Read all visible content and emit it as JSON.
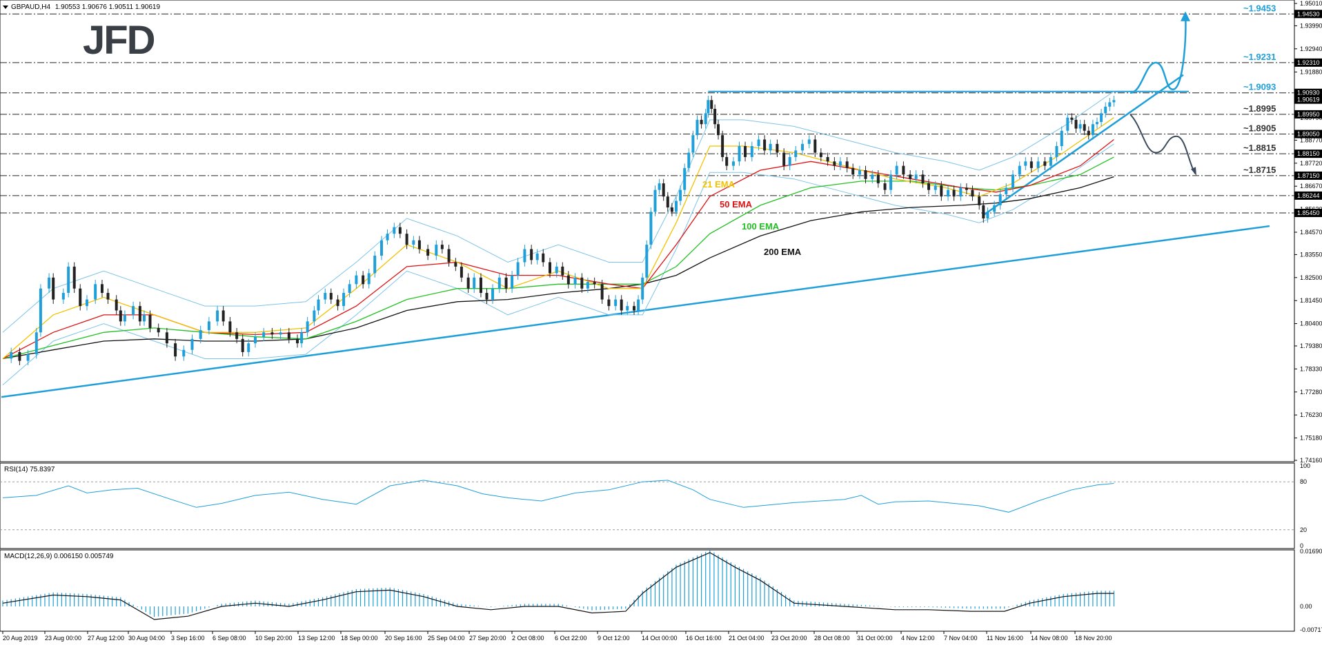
{
  "chart_data": {
    "type": "candlestick",
    "symbol_header": "GBPAUD,H4",
    "ohlc_header": "1.90553 1.90676 1.90511 1.90619",
    "logo": "JFD",
    "price_axis": {
      "min": 1.7416,
      "max": 1.9501,
      "ticks": [
        "1.95010",
        "1.93990",
        "1.92940",
        "1.91880",
        "1.90930",
        "1.90619",
        "1.89950",
        "1.89790",
        "1.88770",
        "1.87720",
        "1.86670",
        "1.85620",
        "1.84570",
        "1.83550",
        "1.82500",
        "1.81450",
        "1.80400",
        "1.79380",
        "1.78330",
        "1.77280",
        "1.76230",
        "1.75180",
        "1.74160"
      ],
      "ticks_values": [
        1.9501,
        1.9399,
        1.9294,
        1.9188,
        1.9093,
        1.90619,
        1.8995,
        1.8979,
        1.8877,
        1.8772,
        1.8667,
        1.8562,
        1.8457,
        1.8355,
        1.825,
        1.8145,
        1.804,
        1.7938,
        1.7833,
        1.7728,
        1.7623,
        1.7518,
        1.7416
      ]
    },
    "time_axis": [
      "20 Aug 2019",
      "23 Aug 00:00",
      "27 Aug 12:00",
      "30 Aug 04:00",
      "3 Sep 16:00",
      "6 Sep 08:00",
      "10 Sep 20:00",
      "13 Sep 12:00",
      "18 Sep 00:00",
      "20 Sep 16:00",
      "25 Sep 04:00",
      "27 Sep 20:00",
      "2 Oct 08:00",
      "6 Oct 22:00",
      "9 Oct 12:00",
      "14 Oct 00:00",
      "16 Oct 16:00",
      "21 Oct 04:00",
      "23 Oct 20:00",
      "28 Oct 08:00",
      "31 Oct 00:00",
      "4 Nov 12:00",
      "7 Nov 04:00",
      "11 Nov 16:00",
      "14 Nov 08:00",
      "18 Nov 20:00"
    ],
    "close_path": [
      [
        0,
        1.788
      ],
      [
        10,
        1.791
      ],
      [
        20,
        1.787
      ],
      [
        30,
        1.79
      ],
      [
        40,
        1.8
      ],
      [
        45,
        1.82
      ],
      [
        55,
        1.825
      ],
      [
        60,
        1.815
      ],
      [
        72,
        1.818
      ],
      [
        78,
        1.83
      ],
      [
        85,
        1.82
      ],
      [
        92,
        1.812
      ],
      [
        100,
        1.815
      ],
      [
        110,
        1.822
      ],
      [
        118,
        1.818
      ],
      [
        125,
        1.815
      ],
      [
        135,
        1.81
      ],
      [
        140,
        1.805
      ],
      [
        145,
        1.808
      ],
      [
        155,
        1.812
      ],
      [
        163,
        1.805
      ],
      [
        168,
        1.808
      ],
      [
        175,
        1.802
      ],
      [
        185,
        1.8
      ],
      [
        195,
        1.795
      ],
      [
        205,
        1.789
      ],
      [
        215,
        1.792
      ],
      [
        225,
        1.797
      ],
      [
        235,
        1.801
      ],
      [
        245,
        1.805
      ],
      [
        255,
        1.81
      ],
      [
        262,
        1.805
      ],
      [
        270,
        1.8
      ],
      [
        278,
        1.797
      ],
      [
        285,
        1.791
      ],
      [
        292,
        1.795
      ],
      [
        300,
        1.798
      ],
      [
        310,
        1.8
      ],
      [
        320,
        1.799
      ],
      [
        330,
        1.8
      ],
      [
        340,
        1.797
      ],
      [
        350,
        1.795
      ],
      [
        355,
        1.8
      ],
      [
        362,
        1.805
      ],
      [
        370,
        1.81
      ],
      [
        375,
        1.815
      ],
      [
        383,
        1.818
      ],
      [
        390,
        1.815
      ],
      [
        398,
        1.812
      ],
      [
        405,
        1.818
      ],
      [
        412,
        1.822
      ],
      [
        420,
        1.826
      ],
      [
        428,
        1.822
      ],
      [
        435,
        1.827
      ],
      [
        442,
        1.835
      ],
      [
        450,
        1.842
      ],
      [
        457,
        1.845
      ],
      [
        465,
        1.848
      ],
      [
        472,
        1.845
      ],
      [
        480,
        1.84
      ],
      [
        488,
        1.842
      ],
      [
        495,
        1.838
      ],
      [
        505,
        1.835
      ],
      [
        515,
        1.84
      ],
      [
        522,
        1.838
      ],
      [
        530,
        1.832
      ],
      [
        538,
        1.83
      ],
      [
        545,
        1.825
      ],
      [
        553,
        1.82
      ],
      [
        560,
        1.825
      ],
      [
        568,
        1.818
      ],
      [
        575,
        1.815
      ],
      [
        582,
        1.82
      ],
      [
        590,
        1.825
      ],
      [
        598,
        1.82
      ],
      [
        605,
        1.826
      ],
      [
        612,
        1.832
      ],
      [
        620,
        1.838
      ],
      [
        628,
        1.833
      ],
      [
        635,
        1.836
      ],
      [
        642,
        1.832
      ],
      [
        650,
        1.827
      ],
      [
        658,
        1.83
      ],
      [
        665,
        1.826
      ],
      [
        672,
        1.822
      ],
      [
        680,
        1.825
      ],
      [
        688,
        1.82
      ],
      [
        695,
        1.823
      ],
      [
        703,
        1.822
      ],
      [
        712,
        1.815
      ],
      [
        720,
        1.812
      ],
      [
        728,
        1.815
      ],
      [
        735,
        1.81
      ],
      [
        742,
        1.812
      ],
      [
        750,
        1.81
      ],
      [
        755,
        1.815
      ],
      [
        760,
        1.825
      ],
      [
        765,
        1.84
      ],
      [
        770,
        1.855
      ],
      [
        775,
        1.865
      ],
      [
        780,
        1.868
      ],
      [
        785,
        1.862
      ],
      [
        790,
        1.857
      ],
      [
        795,
        1.855
      ],
      [
        800,
        1.86
      ],
      [
        805,
        1.865
      ],
      [
        810,
        1.875
      ],
      [
        815,
        1.882
      ],
      [
        820,
        1.89
      ],
      [
        825,
        1.897
      ],
      [
        830,
        1.895
      ],
      [
        835,
        1.9
      ],
      [
        838,
        1.906
      ],
      [
        842,
        1.902
      ],
      [
        846,
        1.895
      ],
      [
        850,
        1.89
      ],
      [
        855,
        1.88
      ],
      [
        860,
        1.876
      ],
      [
        868,
        1.878
      ],
      [
        875,
        1.885
      ],
      [
        882,
        1.88
      ],
      [
        890,
        1.885
      ],
      [
        898,
        1.888
      ],
      [
        905,
        1.883
      ],
      [
        912,
        1.886
      ],
      [
        920,
        1.882
      ],
      [
        928,
        1.876
      ],
      [
        935,
        1.88
      ],
      [
        942,
        1.883
      ],
      [
        950,
        1.886
      ],
      [
        958,
        1.888
      ],
      [
        965,
        1.882
      ],
      [
        972,
        1.88
      ],
      [
        980,
        1.878
      ],
      [
        988,
        1.876
      ],
      [
        995,
        1.878
      ],
      [
        1003,
        1.875
      ],
      [
        1010,
        1.872
      ],
      [
        1018,
        1.874
      ],
      [
        1025,
        1.87
      ],
      [
        1033,
        1.872
      ],
      [
        1040,
        1.868
      ],
      [
        1048,
        1.865
      ],
      [
        1055,
        1.872
      ],
      [
        1062,
        1.876
      ],
      [
        1070,
        1.872
      ],
      [
        1078,
        1.87
      ],
      [
        1085,
        1.872
      ],
      [
        1093,
        1.868
      ],
      [
        1100,
        1.865
      ],
      [
        1108,
        1.867
      ],
      [
        1115,
        1.862
      ],
      [
        1123,
        1.865
      ],
      [
        1130,
        1.862
      ],
      [
        1138,
        1.866
      ],
      [
        1145,
        1.865
      ],
      [
        1152,
        1.862
      ],
      [
        1160,
        1.858
      ],
      [
        1165,
        1.852
      ],
      [
        1170,
        1.855
      ],
      [
        1178,
        1.858
      ],
      [
        1185,
        1.863
      ],
      [
        1192,
        1.866
      ],
      [
        1200,
        1.872
      ],
      [
        1208,
        1.876
      ],
      [
        1215,
        1.878
      ],
      [
        1222,
        1.875
      ],
      [
        1230,
        1.878
      ],
      [
        1238,
        1.876
      ],
      [
        1245,
        1.88
      ],
      [
        1252,
        1.885
      ],
      [
        1258,
        1.892
      ],
      [
        1265,
        1.898
      ],
      [
        1270,
        1.897
      ],
      [
        1275,
        1.893
      ],
      [
        1280,
        1.895
      ],
      [
        1285,
        1.892
      ],
      [
        1290,
        1.89
      ],
      [
        1295,
        1.895
      ],
      [
        1300,
        1.896
      ],
      [
        1305,
        1.9
      ],
      [
        1310,
        1.903
      ],
      [
        1315,
        1.905
      ],
      [
        1320,
        1.906
      ]
    ],
    "ema21_path": [
      [
        0,
        1.788
      ],
      [
        60,
        1.808
      ],
      [
        120,
        1.816
      ],
      [
        180,
        1.808
      ],
      [
        240,
        1.8
      ],
      [
        300,
        1.8
      ],
      [
        360,
        1.802
      ],
      [
        420,
        1.82
      ],
      [
        480,
        1.84
      ],
      [
        540,
        1.832
      ],
      [
        600,
        1.82
      ],
      [
        660,
        1.828
      ],
      [
        720,
        1.82
      ],
      [
        760,
        1.82
      ],
      [
        800,
        1.85
      ],
      [
        840,
        1.885
      ],
      [
        880,
        1.885
      ],
      [
        940,
        1.882
      ],
      [
        1000,
        1.876
      ],
      [
        1060,
        1.87
      ],
      [
        1120,
        1.866
      ],
      [
        1160,
        1.862
      ],
      [
        1200,
        1.868
      ],
      [
        1260,
        1.882
      ],
      [
        1320,
        1.898
      ]
    ],
    "ema50_path": [
      [
        0,
        1.788
      ],
      [
        60,
        1.8
      ],
      [
        120,
        1.808
      ],
      [
        180,
        1.808
      ],
      [
        240,
        1.8
      ],
      [
        300,
        1.799
      ],
      [
        360,
        1.8
      ],
      [
        420,
        1.812
      ],
      [
        480,
        1.83
      ],
      [
        540,
        1.832
      ],
      [
        600,
        1.826
      ],
      [
        660,
        1.826
      ],
      [
        720,
        1.822
      ],
      [
        760,
        1.82
      ],
      [
        800,
        1.84
      ],
      [
        840,
        1.862
      ],
      [
        900,
        1.874
      ],
      [
        960,
        1.878
      ],
      [
        1020,
        1.874
      ],
      [
        1080,
        1.87
      ],
      [
        1140,
        1.866
      ],
      [
        1180,
        1.864
      ],
      [
        1220,
        1.867
      ],
      [
        1280,
        1.876
      ],
      [
        1320,
        1.888
      ]
    ],
    "ema100_path": [
      [
        0,
        1.788
      ],
      [
        60,
        1.794
      ],
      [
        120,
        1.8
      ],
      [
        180,
        1.802
      ],
      [
        240,
        1.8
      ],
      [
        300,
        1.798
      ],
      [
        360,
        1.797
      ],
      [
        420,
        1.805
      ],
      [
        480,
        1.815
      ],
      [
        540,
        1.82
      ],
      [
        600,
        1.82
      ],
      [
        660,
        1.822
      ],
      [
        720,
        1.822
      ],
      [
        760,
        1.822
      ],
      [
        800,
        1.83
      ],
      [
        840,
        1.845
      ],
      [
        900,
        1.858
      ],
      [
        960,
        1.866
      ],
      [
        1020,
        1.869
      ],
      [
        1080,
        1.869
      ],
      [
        1140,
        1.866
      ],
      [
        1180,
        1.865
      ],
      [
        1220,
        1.867
      ],
      [
        1280,
        1.872
      ],
      [
        1320,
        1.88
      ]
    ],
    "ema200_path": [
      [
        0,
        1.788
      ],
      [
        60,
        1.792
      ],
      [
        120,
        1.796
      ],
      [
        180,
        1.797
      ],
      [
        240,
        1.796
      ],
      [
        300,
        1.796
      ],
      [
        360,
        1.797
      ],
      [
        420,
        1.802
      ],
      [
        480,
        1.81
      ],
      [
        540,
        1.814
      ],
      [
        600,
        1.815
      ],
      [
        660,
        1.818
      ],
      [
        720,
        1.82
      ],
      [
        760,
        1.822
      ],
      [
        800,
        1.826
      ],
      [
        840,
        1.834
      ],
      [
        900,
        1.844
      ],
      [
        960,
        1.851
      ],
      [
        1020,
        1.855
      ],
      [
        1080,
        1.857
      ],
      [
        1140,
        1.858
      ],
      [
        1180,
        1.859
      ],
      [
        1220,
        1.861
      ],
      [
        1280,
        1.866
      ],
      [
        1320,
        1.871
      ]
    ],
    "horizontal_levels": [
      {
        "label": "~1.9453",
        "value": 1.9453,
        "color": "#1e9fd9",
        "axis_box": "1.94530"
      },
      {
        "label": "~1.9231",
        "value": 1.9231,
        "color": "#1e9fd9",
        "axis_box": "1.92310"
      },
      {
        "label": "~1.9093",
        "value": 1.9093,
        "color": "#1e9fd9",
        "axis_box": "1.90930"
      },
      {
        "label": "~1.8995",
        "value": 1.8995,
        "color": "#333333",
        "axis_box": "1.89950"
      },
      {
        "label": "~1.8905",
        "value": 1.8905,
        "color": "#333333",
        "axis_box": "1.89050"
      },
      {
        "label": "~1.8815",
        "value": 1.8815,
        "color": "#333333",
        "axis_box": "1.88150"
      },
      {
        "label": "~1.8715",
        "value": 1.8715,
        "color": "#333333",
        "axis_box": "1.87150"
      },
      {
        "label": "",
        "value": 1.8624,
        "color": "#333333",
        "axis_box": "1.86244"
      },
      {
        "label": "",
        "value": 1.8545,
        "color": "#333333",
        "axis_box": "1.85450"
      }
    ],
    "current_price_box": "1.90619",
    "ema_labels": [
      {
        "text": "21 EMA",
        "color": "#f2c200"
      },
      {
        "text": "50 EMA",
        "color": "#e01010"
      },
      {
        "text": "100 EMA",
        "color": "#22c122"
      },
      {
        "text": "200 EMA",
        "color": "#111111"
      }
    ],
    "rsi": {
      "header": "RSI(14) 75.8397",
      "ticks": [
        "100",
        "80",
        "20",
        "0"
      ]
    },
    "macd": {
      "header": "MACD(12,26,9) 0.006150 0.005749",
      "ticks": [
        "0.016904",
        "0.00",
        "-0.007174"
      ]
    }
  }
}
